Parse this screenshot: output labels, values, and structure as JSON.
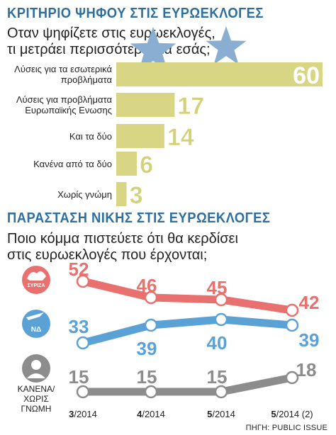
{
  "section1": {
    "title": "ΚΡΙΤΗΡΙΟ ΨΗΦΟΥ ΣΤΙΣ ΕΥΡΩΕΚΛΟΓΕΣ",
    "question_line1": "Οταν ψηφίζετε στις ευρωεκλογές,",
    "question_line2": "τι μετράει περισσότερο για εσάς;"
  },
  "section2": {
    "title": "ΠΑΡΑΣΤΑΣΗ ΝΙΚΗΣ ΣΤΙΣ ΕΥΡΩΕΚΛΟΓΕΣ",
    "question_line1": "Ποιο κόμμα πιστεύετε ότι θα κερδίσει",
    "question_line2": "στις ευρωεκλογές που έρχονται;"
  },
  "source": "ΠΗΓΗ: PUBLIC ISSUE",
  "colors": {
    "title_blue": "#2f6f9f",
    "bar_fill": "#d8d685",
    "bar_value": "#d3d07a",
    "star": "#8aaed1",
    "syriza": "#e8716f",
    "nd": "#5aa2d6",
    "none": "#8c8c8c"
  },
  "chart_data": [
    {
      "type": "bar",
      "orientation": "horizontal",
      "categories": [
        [
          "Λύσεις για τα εσωτερικά",
          "προβλήματα"
        ],
        [
          "Λύσεις για προβλήματα",
          "Ευρωπαϊκής Ενωσης"
        ],
        [
          "Και τα δύο"
        ],
        [
          "Κανένα από τα δύο"
        ],
        [
          "Χωρίς γνώμη"
        ]
      ],
      "values": [
        60,
        17,
        14,
        6,
        3
      ]
    },
    {
      "type": "line",
      "x": [
        "3/2014",
        "4/2014",
        "5/2014",
        "5/2014 (2)"
      ],
      "x_bold": [
        "3",
        "4",
        "5",
        "5"
      ],
      "x_rest": [
        "/2014",
        "/2014",
        "/2014",
        "/2014 (2)"
      ],
      "series": [
        {
          "name": "ΣΥΡΙΖΑ",
          "values": [
            52,
            46,
            45,
            42
          ],
          "color": "#e8716f",
          "icon": "syriza-logo-icon",
          "label_pos": "above"
        },
        {
          "name": "ΝΔ",
          "values": [
            33,
            39,
            40,
            39
          ],
          "color": "#5aa2d6",
          "icon": "nd-logo-icon",
          "label_pos": "mixed"
        },
        {
          "name": [
            "ΚΑΝΕΝΑ/",
            "ΧΩΡΙΣ",
            "ΓΝΩΜΗ"
          ],
          "values": [
            15,
            15,
            15,
            18
          ],
          "color": "#8c8c8c",
          "icon": "person-icon",
          "label_pos": "above"
        }
      ]
    }
  ]
}
